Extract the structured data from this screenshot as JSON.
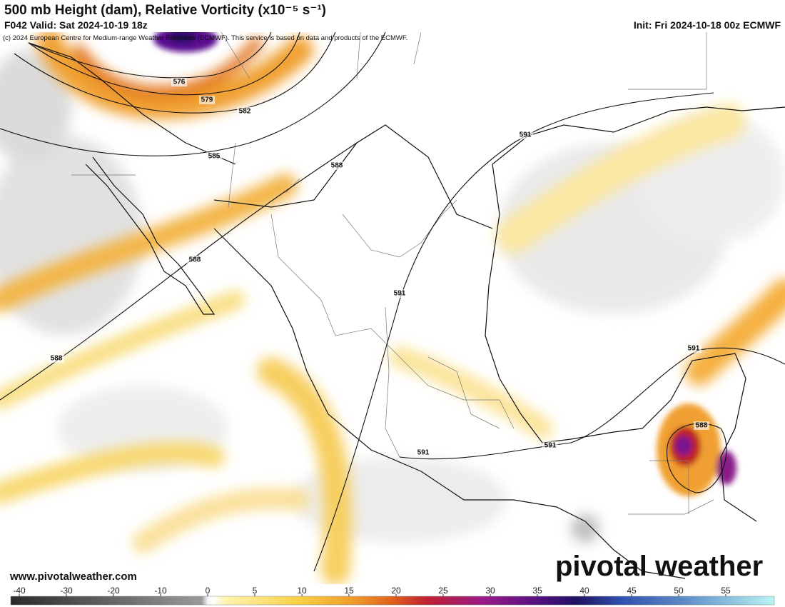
{
  "header": {
    "title": "500 mb Height (dam), Relative Vorticity (x10⁻⁵ s⁻¹)",
    "valid": "F042 Valid: Sat 2024-10-19 18z",
    "init": "Init: Fri 2024-10-18 00z ECMWF",
    "credit": "(c) 2024 European Centre for Medium-range Weather Forecasts (ECMWF). This service is based on data and products of the ECMWF."
  },
  "map": {
    "contour_labels": [
      576,
      579,
      582,
      585,
      588,
      588,
      588,
      591,
      591,
      591,
      591,
      591,
      588
    ]
  },
  "footer": {
    "website": "www.pivotalweather.com",
    "logo": "pivotal weather"
  },
  "colorbar": {
    "ticks": [
      -40,
      -30,
      -20,
      -10,
      0,
      5,
      10,
      15,
      20,
      25,
      30,
      35,
      40,
      45,
      50,
      55
    ]
  }
}
